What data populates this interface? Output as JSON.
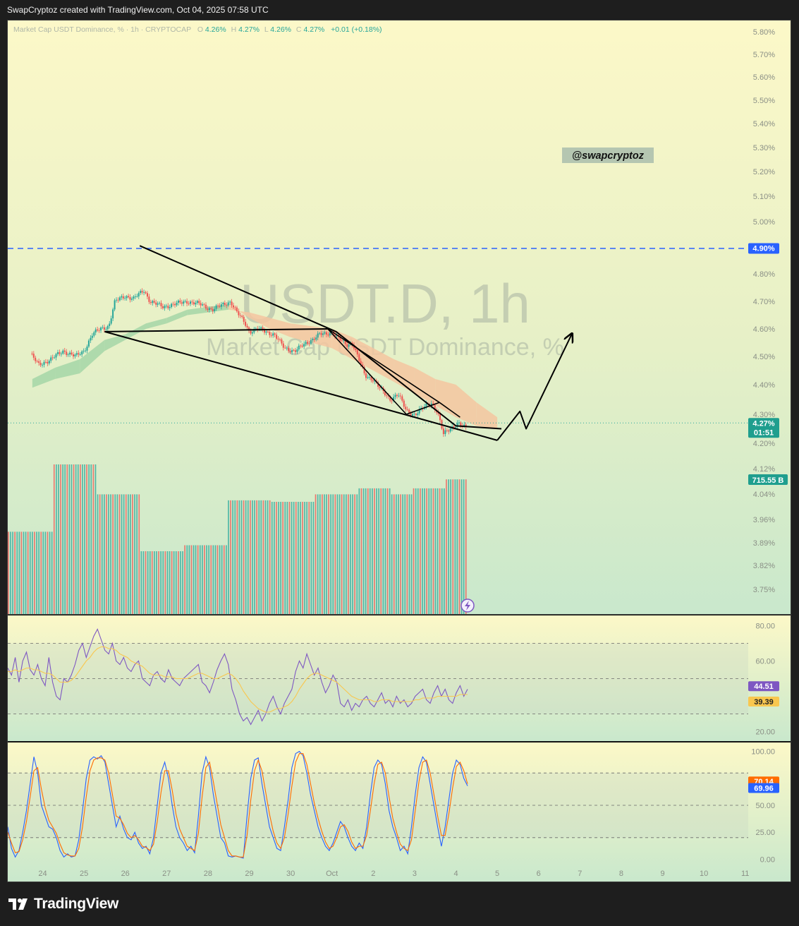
{
  "header": {
    "text": "SwapCryptoz created with TradingView.com, Oct 04, 2025 07:58 UTC"
  },
  "legend": {
    "symbol": "Market Cap USDT Dominance, % · 1h · CRYPTOCAP",
    "o_label": "O",
    "o_value": "4.26%",
    "h_label": "H",
    "h_value": "4.27%",
    "l_label": "L",
    "l_value": "4.26%",
    "c_label": "C",
    "c_value": "4.27%",
    "change": "+0.01 (+0.18%)"
  },
  "watermark": {
    "line1": "USDT.D, 1h",
    "line2": "Market Cap USDT Dominance, %"
  },
  "handle": "@swapcryptoz",
  "brand": "TradingView",
  "colors": {
    "up": "#26a69a",
    "down": "#ef5350",
    "drawing": "#000000",
    "level_line": "#2962ff",
    "cloud_bull": "#a5d6a7",
    "cloud_bear": "#f5c6a0",
    "rsi": "#7e57c2",
    "rsi_ma": "#f9c74f",
    "stoch_k": "#2962ff",
    "stoch_d": "#ff6d00"
  },
  "chart_data": [
    {
      "type": "candlestick",
      "title": "Market Cap USDT Dominance, %",
      "timeframe": "1h",
      "x_ticks": [
        "24",
        "25",
        "26",
        "27",
        "28",
        "29",
        "30",
        "Oct",
        "2",
        "3",
        "4",
        "5",
        "6",
        "7",
        "8",
        "9",
        "10",
        "11"
      ],
      "y_ticks": [
        "5.80%",
        "5.70%",
        "5.60%",
        "5.50%",
        "5.40%",
        "5.30%",
        "5.20%",
        "5.10%",
        "5.00%",
        "4.80%",
        "4.70%",
        "4.60%",
        "4.50%",
        "4.40%",
        "4.30%",
        "4.20%",
        "4.12%",
        "4.04%",
        "3.96%",
        "3.89%",
        "3.82%",
        "3.75%"
      ],
      "ylim": [
        3.73,
        5.82
      ],
      "level_line": {
        "value": 4.9,
        "label": "4.90%"
      },
      "last_price": {
        "value": 4.27,
        "label": "4.27%",
        "countdown": "01:51"
      },
      "volume_badge": "715.55 B",
      "price_path": [
        [
          23.7,
          4.51
        ],
        [
          23.9,
          4.47
        ],
        [
          24.2,
          4.49
        ],
        [
          24.5,
          4.52
        ],
        [
          24.8,
          4.5
        ],
        [
          25.0,
          4.52
        ],
        [
          25.2,
          4.58
        ],
        [
          25.4,
          4.6
        ],
        [
          25.6,
          4.61
        ],
        [
          25.75,
          4.7
        ],
        [
          26.0,
          4.72
        ],
        [
          26.2,
          4.71
        ],
        [
          26.45,
          4.74
        ],
        [
          26.6,
          4.7
        ],
        [
          26.9,
          4.68
        ],
        [
          27.2,
          4.69
        ],
        [
          27.5,
          4.7
        ],
        [
          27.8,
          4.69
        ],
        [
          28.1,
          4.67
        ],
        [
          28.4,
          4.69
        ],
        [
          28.55,
          4.7
        ],
        [
          28.7,
          4.66
        ],
        [
          28.9,
          4.62
        ],
        [
          29.0,
          4.59
        ],
        [
          29.2,
          4.6
        ],
        [
          29.4,
          4.59
        ],
        [
          29.6,
          4.58
        ],
        [
          29.85,
          4.53
        ],
        [
          30.1,
          4.52
        ],
        [
          30.3,
          4.54
        ],
        [
          30.5,
          4.56
        ],
        [
          30.7,
          4.58
        ],
        [
          30.85,
          4.58
        ],
        [
          31.0,
          4.59
        ],
        [
          31.2,
          4.56
        ],
        [
          31.35,
          4.54
        ],
        [
          31.5,
          4.55
        ],
        [
          31.65,
          4.49
        ],
        [
          31.8,
          4.43
        ],
        [
          32.0,
          4.42
        ],
        [
          32.2,
          4.38
        ],
        [
          32.4,
          4.35
        ],
        [
          32.6,
          4.37
        ],
        [
          32.8,
          4.31
        ],
        [
          33.0,
          4.3
        ],
        [
          33.2,
          4.32
        ],
        [
          33.4,
          4.34
        ],
        [
          33.55,
          4.31
        ],
        [
          33.7,
          4.23
        ],
        [
          33.85,
          4.25
        ],
        [
          34.05,
          4.27
        ],
        [
          34.25,
          4.25
        ]
      ],
      "volume": [
        0.55,
        0.55,
        0.55,
        0.55,
        0.55,
        0.55,
        0.55,
        0.55,
        0.55,
        0.55,
        0.55,
        0.55,
        0.55,
        0.55,
        0.55,
        0.55,
        0.55,
        0.55,
        0.55,
        0.55,
        0.55,
        1.0,
        1.0,
        1.0,
        1.0,
        1.0,
        1.0,
        1.0,
        1.0,
        1.0,
        1.0,
        1.0,
        1.0,
        1.0,
        1.0,
        1.0,
        1.0,
        1.0,
        1.0,
        1.0,
        1.0,
        0.8,
        0.8,
        0.8,
        0.8,
        0.8,
        0.8,
        0.8,
        0.8,
        0.8,
        0.8,
        0.8,
        0.8,
        0.8,
        0.8,
        0.8,
        0.8,
        0.8,
        0.8,
        0.8,
        0.8,
        0.42,
        0.42,
        0.42,
        0.42,
        0.42,
        0.42,
        0.42,
        0.42,
        0.42,
        0.42,
        0.42,
        0.42,
        0.42,
        0.42,
        0.42,
        0.42,
        0.42,
        0.42,
        0.42,
        0.42,
        0.46,
        0.46,
        0.46,
        0.46,
        0.46,
        0.46,
        0.46,
        0.46,
        0.46,
        0.46,
        0.46,
        0.46,
        0.46,
        0.46,
        0.46,
        0.46,
        0.46,
        0.46,
        0.46,
        0.46,
        0.76,
        0.76,
        0.76,
        0.76,
        0.76,
        0.76,
        0.76,
        0.76,
        0.76,
        0.76,
        0.76,
        0.76,
        0.76,
        0.76,
        0.76,
        0.76,
        0.76,
        0.76,
        0.76,
        0.76,
        0.75,
        0.75,
        0.75,
        0.75,
        0.75,
        0.75,
        0.75,
        0.75,
        0.75,
        0.75,
        0.75,
        0.75,
        0.75,
        0.75,
        0.75,
        0.75,
        0.75,
        0.75,
        0.75,
        0.75,
        0.8,
        0.8,
        0.8,
        0.8,
        0.8,
        0.8,
        0.8,
        0.8,
        0.8,
        0.8,
        0.8,
        0.8,
        0.8,
        0.8,
        0.8,
        0.8,
        0.8,
        0.8,
        0.8,
        0.8,
        0.84,
        0.84,
        0.84,
        0.84,
        0.84,
        0.84,
        0.84,
        0.84,
        0.84,
        0.84,
        0.84,
        0.84,
        0.84,
        0.84,
        0.84,
        0.8,
        0.8,
        0.8,
        0.8,
        0.8,
        0.8,
        0.8,
        0.8,
        0.8,
        0.8,
        0.84,
        0.84,
        0.84,
        0.84,
        0.84,
        0.84,
        0.84,
        0.84,
        0.84,
        0.84,
        0.84,
        0.84,
        0.84,
        0.84,
        0.84,
        0.9,
        0.9,
        0.9,
        0.9,
        0.9,
        0.9,
        0.9,
        0.9,
        0.9,
        0.9
      ],
      "cloud": [
        [
          23.75,
          4.42,
          4.39
        ],
        [
          24.3,
          4.46,
          4.42
        ],
        [
          24.9,
          4.49,
          4.44
        ],
        [
          25.5,
          4.56,
          4.52
        ],
        [
          26.0,
          4.58,
          4.56
        ],
        [
          26.5,
          4.62,
          4.6
        ],
        [
          27.0,
          4.64,
          4.62
        ],
        [
          27.5,
          4.67,
          4.65
        ],
        [
          28.0,
          4.68,
          4.66
        ],
        [
          28.5,
          4.69,
          4.67
        ],
        [
          29.0,
          4.64,
          4.66
        ],
        [
          29.5,
          4.6,
          4.64
        ],
        [
          30.0,
          4.57,
          4.62
        ],
        [
          30.5,
          4.55,
          4.61
        ],
        [
          31.0,
          4.53,
          4.6
        ],
        [
          31.5,
          4.49,
          4.57
        ],
        [
          32.0,
          4.45,
          4.53
        ],
        [
          32.5,
          4.41,
          4.49
        ],
        [
          33.0,
          4.37,
          4.46
        ],
        [
          33.5,
          4.33,
          4.42
        ],
        [
          34.0,
          4.29,
          4.4
        ],
        [
          34.5,
          4.26,
          4.34
        ],
        [
          35.0,
          4.25,
          4.29
        ]
      ],
      "drawings": {
        "wedge_upper": [
          [
            26.35,
            4.91
          ],
          [
            31.1,
            4.59
          ],
          [
            34.0,
            4.26
          ],
          [
            35.1,
            4.25
          ]
        ],
        "wedge_lower": [
          [
            25.5,
            4.59
          ],
          [
            33.0,
            4.29
          ],
          [
            35.0,
            4.21
          ]
        ],
        "mid_line": [
          [
            25.5,
            4.59
          ],
          [
            30.9,
            4.6
          ]
        ],
        "inner_upper": [
          [
            30.9,
            4.6
          ],
          [
            33.6,
            4.34
          ],
          [
            34.1,
            4.29
          ]
        ],
        "inner_lower": [
          [
            30.9,
            4.6
          ],
          [
            32.8,
            4.3
          ],
          [
            33.6,
            4.34
          ]
        ],
        "projection": [
          [
            35.0,
            4.21
          ],
          [
            35.55,
            4.31
          ],
          [
            35.7,
            4.25
          ],
          [
            36.8,
            4.58
          ]
        ]
      }
    },
    {
      "type": "line",
      "title": "RSI",
      "y_ticks": [
        "80.00",
        "60.00",
        "20.00"
      ],
      "bands": [
        30,
        50,
        70
      ],
      "ylim": [
        15,
        85
      ],
      "current_values": [
        "44.51",
        "39.39"
      ],
      "series": [
        {
          "values": [
            56,
            52,
            62,
            48,
            60,
            65,
            55,
            52,
            58,
            50,
            46,
            62,
            48,
            40,
            38,
            50,
            48,
            52,
            58,
            66,
            70,
            62,
            68,
            74,
            78,
            72,
            66,
            64,
            70,
            60,
            58,
            62,
            56,
            54,
            58,
            60,
            50,
            48,
            46,
            52,
            54,
            50,
            48,
            55,
            50,
            48,
            46,
            50,
            52,
            54,
            56,
            58,
            48,
            46,
            42,
            48,
            55,
            60,
            64,
            58,
            44,
            38,
            30,
            26,
            28,
            24,
            28,
            32,
            26,
            30,
            36,
            40,
            34,
            30,
            36,
            40,
            44,
            54,
            60,
            56,
            64,
            58,
            52,
            56,
            48,
            42,
            46,
            52,
            48,
            36,
            34,
            38,
            32,
            36,
            34,
            38,
            40,
            36,
            34,
            38,
            42,
            36,
            38,
            34,
            40,
            36,
            38,
            34,
            36,
            40,
            42,
            44,
            38,
            36,
            42,
            46,
            40,
            44,
            38,
            36,
            42,
            46,
            40,
            44
          ]
        },
        {
          "values": [
            54,
            54,
            55,
            54,
            55,
            56,
            56,
            55,
            55,
            54,
            53,
            53,
            52,
            50,
            48,
            48,
            48,
            49,
            51,
            54,
            57,
            60,
            62,
            65,
            67,
            68,
            68,
            67,
            67,
            66,
            64,
            63,
            62,
            60,
            59,
            58,
            57,
            55,
            53,
            52,
            52,
            52,
            51,
            51,
            51,
            50,
            50,
            50,
            50,
            51,
            52,
            53,
            53,
            52,
            51,
            50,
            50,
            51,
            52,
            53,
            52,
            50,
            47,
            43,
            40,
            37,
            35,
            33,
            32,
            31,
            31,
            32,
            33,
            33,
            34,
            35,
            37,
            40,
            44,
            47,
            50,
            52,
            53,
            53,
            52,
            51,
            50,
            49,
            48,
            46,
            44,
            42,
            40,
            39,
            38,
            38,
            38,
            38,
            37,
            37,
            38,
            38,
            38,
            37,
            37,
            37,
            37,
            37,
            37,
            38,
            38,
            39,
            39,
            39,
            39,
            40,
            40,
            40,
            40,
            40,
            40,
            41,
            41,
            41
          ]
        }
      ]
    },
    {
      "type": "line",
      "title": "Stochastic",
      "y_ticks": [
        "100.00",
        "50.00",
        "25.00",
        "0.00"
      ],
      "bands": [
        20,
        50,
        80
      ],
      "ylim": [
        -5,
        105
      ],
      "current_values": [
        "70.14",
        "69.96"
      ],
      "series": [
        {
          "values": [
            30,
            10,
            2,
            8,
            25,
            45,
            70,
            95,
            80,
            50,
            40,
            30,
            28,
            20,
            8,
            2,
            5,
            2,
            3,
            18,
            45,
            75,
            92,
            95,
            93,
            96,
            90,
            70,
            50,
            30,
            40,
            28,
            20,
            18,
            25,
            15,
            10,
            12,
            5,
            20,
            50,
            80,
            90,
            75,
            50,
            30,
            20,
            15,
            8,
            12,
            6,
            40,
            80,
            95,
            85,
            60,
            40,
            20,
            15,
            3,
            2,
            3,
            2,
            1,
            40,
            75,
            92,
            94,
            70,
            50,
            30,
            20,
            10,
            8,
            30,
            55,
            85,
            98,
            100,
            96,
            80,
            60,
            45,
            30,
            20,
            12,
            8,
            15,
            25,
            35,
            30,
            20,
            12,
            8,
            15,
            10,
            30,
            60,
            85,
            92,
            88,
            70,
            45,
            30,
            20,
            8,
            12,
            5,
            30,
            60,
            85,
            95,
            90,
            70,
            50,
            30,
            12,
            30,
            55,
            80,
            92,
            88,
            75,
            68
          ]
        },
        {
          "values": [
            25,
            15,
            6,
            7,
            18,
            35,
            58,
            82,
            85,
            65,
            48,
            36,
            30,
            24,
            14,
            6,
            4,
            3,
            3,
            10,
            30,
            58,
            82,
            92,
            94,
            94,
            92,
            80,
            60,
            40,
            38,
            32,
            24,
            20,
            22,
            18,
            12,
            11,
            8,
            14,
            35,
            62,
            82,
            82,
            64,
            42,
            28,
            20,
            12,
            10,
            8,
            24,
            58,
            85,
            90,
            72,
            52,
            32,
            20,
            8,
            3,
            3,
            2,
            2,
            22,
            55,
            82,
            92,
            82,
            62,
            42,
            26,
            15,
            10,
            20,
            42,
            68,
            90,
            98,
            98,
            88,
            70,
            52,
            38,
            26,
            16,
            10,
            12,
            20,
            30,
            32,
            26,
            16,
            10,
            12,
            12,
            22,
            45,
            70,
            88,
            90,
            80,
            58,
            38,
            25,
            14,
            10,
            8,
            18,
            45,
            72,
            90,
            92,
            80,
            60,
            40,
            22,
            22,
            42,
            66,
            86,
            90,
            82,
            70
          ]
        }
      ]
    }
  ]
}
